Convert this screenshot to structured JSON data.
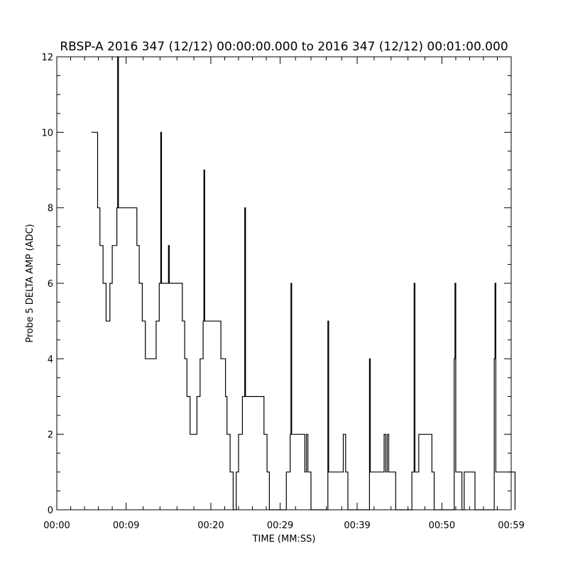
{
  "chart_data": {
    "type": "line",
    "title": "RBSP-A 2016 347 (12/12) 00:00:00.000 to 2016 347 (12/12) 00:01:00.000",
    "xlabel": "TIME (MM:SS)",
    "ylabel": "Probe 5 DELTA AMP (ADC)",
    "xlim": [
      0,
      59
    ],
    "ylim": [
      0,
      12
    ],
    "x_ticks": [
      {
        "value": 0,
        "label": "00:00"
      },
      {
        "value": 9,
        "label": "00:09"
      },
      {
        "value": 20,
        "label": "00:20"
      },
      {
        "value": 29,
        "label": "00:29"
      },
      {
        "value": 39,
        "label": "00:39"
      },
      {
        "value": 50,
        "label": "00:50"
      },
      {
        "value": 59,
        "label": "00:59"
      }
    ],
    "y_ticks": [
      0,
      2,
      4,
      6,
      8,
      10,
      12
    ],
    "grid": false,
    "series": [
      {
        "color": "#000000",
        "step": true,
        "points": [
          [
            4.5,
            10
          ],
          [
            5.1,
            10
          ],
          [
            5.3,
            8
          ],
          [
            5.6,
            7
          ],
          [
            6.0,
            6
          ],
          [
            6.4,
            5
          ],
          [
            6.9,
            6
          ],
          [
            7.2,
            7
          ],
          [
            7.8,
            8
          ],
          [
            7.9,
            12
          ],
          [
            8.0,
            8
          ],
          [
            10.3,
            8
          ],
          [
            10.4,
            7
          ],
          [
            10.7,
            6
          ],
          [
            11.1,
            5
          ],
          [
            11.5,
            4
          ],
          [
            12.5,
            4
          ],
          [
            12.9,
            5
          ],
          [
            13.3,
            6
          ],
          [
            13.5,
            10
          ],
          [
            13.6,
            6
          ],
          [
            14.5,
            7
          ],
          [
            14.6,
            6
          ],
          [
            16.0,
            6
          ],
          [
            16.3,
            5
          ],
          [
            16.6,
            4
          ],
          [
            16.9,
            3
          ],
          [
            17.3,
            2
          ],
          [
            17.9,
            2
          ],
          [
            18.2,
            3
          ],
          [
            18.6,
            4
          ],
          [
            19.0,
            5
          ],
          [
            19.1,
            9
          ],
          [
            19.2,
            5
          ],
          [
            21.0,
            5
          ],
          [
            21.3,
            4
          ],
          [
            21.9,
            3
          ],
          [
            22.1,
            2
          ],
          [
            22.5,
            1
          ],
          [
            22.9,
            0
          ],
          [
            23.3,
            1
          ],
          [
            23.6,
            2
          ],
          [
            24.1,
            3
          ],
          [
            24.4,
            8
          ],
          [
            24.5,
            3
          ],
          [
            26.5,
            3
          ],
          [
            26.9,
            2
          ],
          [
            27.3,
            1
          ],
          [
            27.6,
            0
          ],
          [
            29.6,
            0
          ],
          [
            29.8,
            1
          ],
          [
            30.3,
            2
          ],
          [
            30.4,
            6
          ],
          [
            30.5,
            2
          ],
          [
            32.0,
            2
          ],
          [
            32.2,
            1
          ],
          [
            32.4,
            2
          ],
          [
            32.6,
            1
          ],
          [
            33.0,
            0
          ],
          [
            35.1,
            0
          ],
          [
            35.2,
            5
          ],
          [
            35.3,
            1
          ],
          [
            37.0,
            1
          ],
          [
            37.2,
            2
          ],
          [
            37.5,
            1
          ],
          [
            37.8,
            0
          ],
          [
            40.5,
            0
          ],
          [
            40.6,
            4
          ],
          [
            40.7,
            1
          ],
          [
            42.3,
            1
          ],
          [
            42.5,
            2
          ],
          [
            42.7,
            1
          ],
          [
            42.9,
            2
          ],
          [
            43.1,
            1
          ],
          [
            44.0,
            0
          ],
          [
            45.9,
            0
          ],
          [
            46.1,
            1
          ],
          [
            46.4,
            6
          ],
          [
            46.5,
            1
          ],
          [
            47.0,
            2
          ],
          [
            48.5,
            2
          ],
          [
            48.7,
            1
          ],
          [
            49.0,
            0
          ],
          [
            51.2,
            0
          ],
          [
            51.6,
            4
          ],
          [
            51.7,
            6
          ],
          [
            51.8,
            1
          ],
          [
            52.6,
            0
          ],
          [
            52.9,
            1
          ],
          [
            54.1,
            1
          ],
          [
            54.3,
            0
          ],
          [
            56.6,
            0
          ],
          [
            56.8,
            4
          ],
          [
            56.9,
            6
          ],
          [
            57.0,
            1
          ],
          [
            59.3,
            1
          ],
          [
            59.5,
            0
          ]
        ]
      }
    ]
  }
}
